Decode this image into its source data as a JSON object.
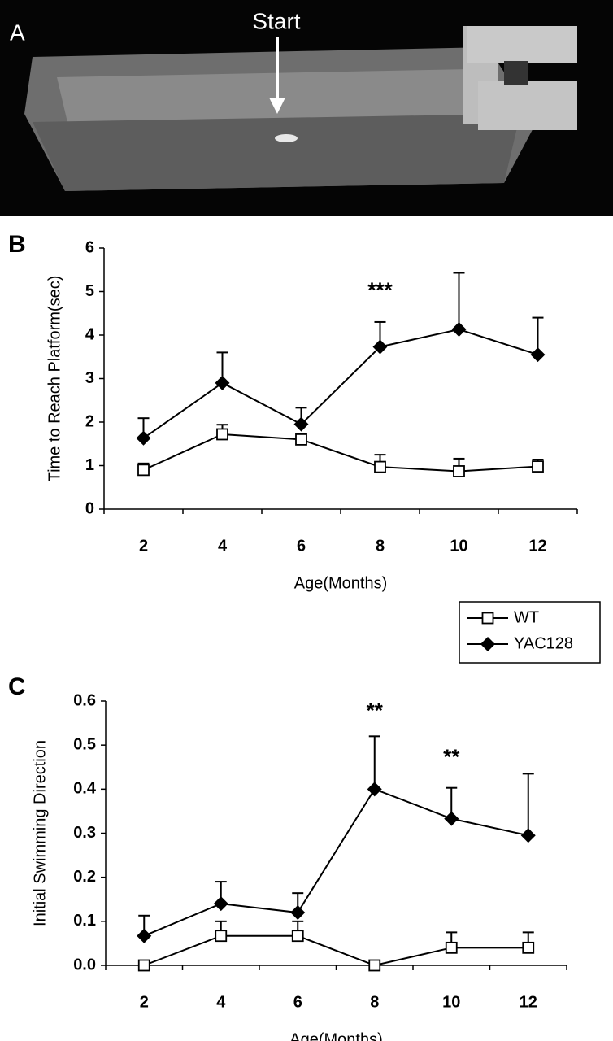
{
  "panel_a": {
    "label": "A",
    "annotation": "Start"
  },
  "chart_data": [
    {
      "type": "line",
      "panel_label": "B",
      "ylabel": "Time to Reach Platform(sec)",
      "xlabel": "Age(Months)",
      "categories": [
        2,
        4,
        6,
        8,
        10,
        12
      ],
      "ylim": [
        0,
        6
      ],
      "yticks": [
        0,
        1,
        2,
        3,
        4,
        5,
        6
      ],
      "legend": "between-panels",
      "series": [
        {
          "name": "WT",
          "color": "#000000",
          "marker": "square",
          "values": [
            0.9,
            1.72,
            1.6,
            0.97,
            0.87,
            0.98
          ],
          "errors": [
            0.15,
            0.22,
            0.1,
            0.28,
            0.29,
            0.16
          ]
        },
        {
          "name": "YAC128",
          "color": "#000000",
          "marker": "diamond",
          "values": [
            1.63,
            2.9,
            1.95,
            3.73,
            4.13,
            3.55
          ],
          "errors": [
            0.46,
            0.7,
            0.38,
            0.57,
            1.3,
            0.85
          ]
        }
      ],
      "annotations": [
        {
          "text": "***",
          "x": 8,
          "y": 5.0
        }
      ]
    },
    {
      "type": "line",
      "panel_label": "C",
      "ylabel": "Initial Swimming Direction",
      "xlabel": "Age(Months)",
      "categories": [
        2,
        4,
        6,
        8,
        10,
        12
      ],
      "ylim": [
        0,
        0.6
      ],
      "yticks": [
        {
          "value": 0,
          "label": "0.0"
        },
        0.1,
        0.2,
        0.3,
        0.4,
        0.5,
        0.6
      ],
      "series": [
        {
          "color": "#000000",
          "marker": "square",
          "values": [
            0,
            0.067,
            0.067,
            0,
            0.04,
            0.04
          ],
          "errors": [
            0,
            0.033,
            0.033,
            0,
            0.035,
            0.035
          ]
        },
        {
          "color": "#000000",
          "marker": "diamond",
          "values": [
            0.067,
            0.14,
            0.12,
            0.4,
            0.333,
            0.295
          ],
          "errors": [
            0.046,
            0.05,
            0.044,
            0.12,
            0.07,
            0.14
          ]
        }
      ],
      "annotations": [
        {
          "text": "**",
          "x": 8,
          "y": 0.575
        },
        {
          "text": "**",
          "x": 10,
          "y": 0.47
        }
      ]
    }
  ]
}
